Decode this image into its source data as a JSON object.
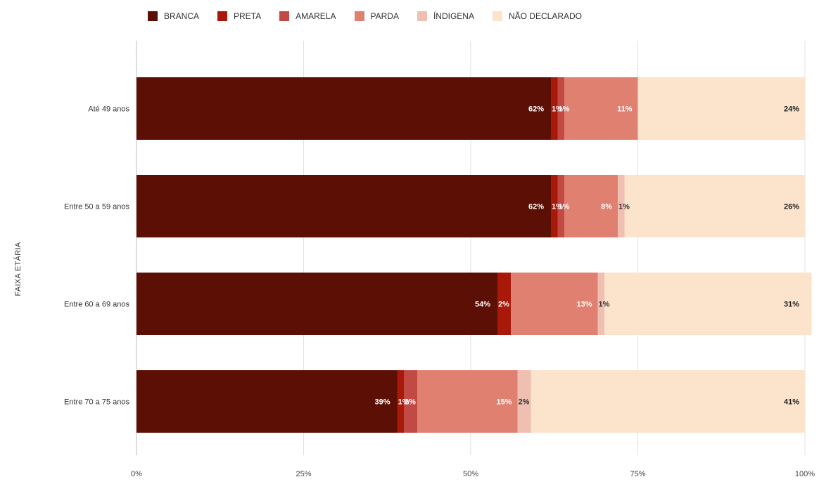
{
  "chart_data": {
    "type": "bar",
    "orientation": "horizontal",
    "stacked": "percent",
    "ylabel": "FAIXA ETÁRIA",
    "xlim": [
      0,
      100
    ],
    "x_ticks": [
      "0%",
      "25%",
      "50%",
      "75%",
      "100%"
    ],
    "grid": true,
    "legend_position": "top",
    "categories": [
      "Até 49 anos",
      "Entre 50 a 59 anos",
      "Entre 60 a 69 anos",
      "Entre 70 a 75 anos"
    ],
    "series": [
      {
        "name": "BRANCA",
        "color": "#5c0f04",
        "values": [
          62,
          62,
          54,
          39
        ],
        "labels": [
          "62%",
          "62%",
          "54%",
          "39%"
        ]
      },
      {
        "name": "PRETA",
        "color": "#a8190a",
        "values": [
          1,
          1,
          2,
          1
        ],
        "labels": [
          "1%",
          "1%",
          "2%",
          "1%"
        ]
      },
      {
        "name": "AMARELA",
        "color": "#c24a45",
        "values": [
          1,
          1,
          0,
          2
        ],
        "labels": [
          "1%",
          "1%",
          "",
          "2%"
        ]
      },
      {
        "name": "PARDA",
        "color": "#e08070",
        "values": [
          11,
          8,
          13,
          15
        ],
        "labels": [
          "11%",
          "8%",
          "13%",
          "15%"
        ]
      },
      {
        "name": "ÍNDIGENA",
        "color": "#efbfb2",
        "values": [
          0,
          1,
          1,
          2
        ],
        "labels": [
          "",
          "1%",
          "1%",
          "2%"
        ]
      },
      {
        "name": "NÃO DECLARADO",
        "color": "#fbe3cc",
        "values": [
          24,
          26,
          31,
          41
        ],
        "labels": [
          "24%",
          "26%",
          "31%",
          "41%"
        ]
      }
    ]
  }
}
